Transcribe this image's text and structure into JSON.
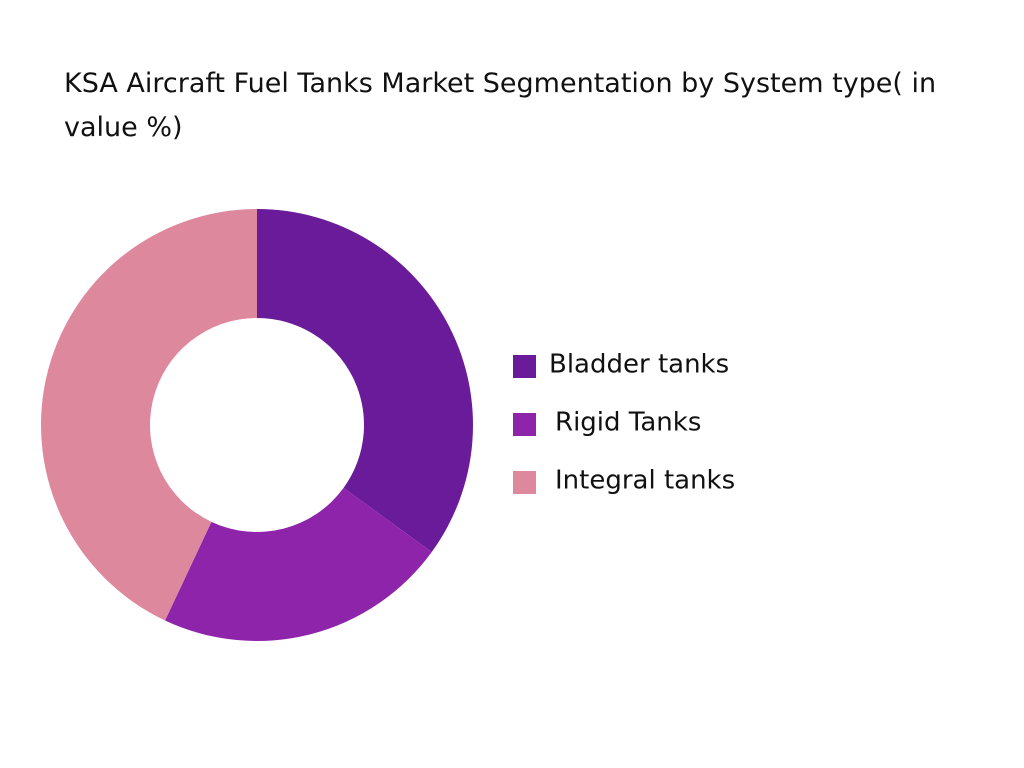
{
  "chart_data": {
    "type": "donut",
    "title": "KSA Aircraft Fuel Tanks Market Segmentation by System type( in value %)",
    "categories": [
      "Bladder tanks",
      "Rigid Tanks",
      "Integral tanks"
    ],
    "values": [
      35,
      22,
      43
    ],
    "colors": [
      "#6a1b9a",
      "#8e24aa",
      "#de889e"
    ]
  }
}
